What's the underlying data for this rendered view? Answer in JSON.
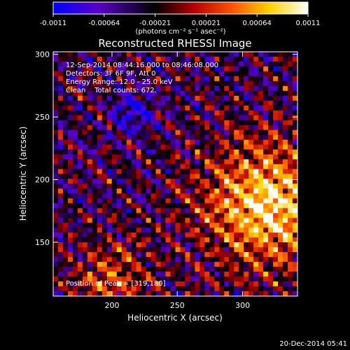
{
  "chart_data": {
    "type": "heatmap",
    "title": "Reconstructed RHESSI Image",
    "xlabel": "Heliocentric X (arcsec)",
    "ylabel": "Heliocentric Y (arcsec)",
    "xlim": [
      155,
      342
    ],
    "ylim": [
      107,
      302
    ],
    "xticks": [
      200,
      250,
      300
    ],
    "yticks": [
      150,
      200,
      250,
      300
    ],
    "colorbar": {
      "vmin": -0.0011,
      "vmax": 0.0011,
      "ticks": [
        "-0.0011",
        "-0.00064",
        "-0.00021",
        "0.00021",
        "0.00064",
        "0.0011"
      ],
      "unit_label": "(photons cm⁻² s⁻¹ asec⁻²)",
      "colormap": [
        "#0000ff",
        "#5a00c8",
        "#000000",
        "#b40000",
        "#ff5000",
        "#ffd200",
        "#ffffff"
      ]
    },
    "annotations": [
      "12-Sep-2014 08:44:16.000 to 08:46:08.000",
      "Detectors: 3F 6F 9F, Att 0",
      "Energy Range: 12.0 - 25.0 keV",
      "Clean    Total counts: 672."
    ],
    "peak_label": "Position of Peak = [319,180]",
    "peak_position": [
      319,
      180
    ],
    "footer_date": "20-Dec-2014 05:41"
  }
}
